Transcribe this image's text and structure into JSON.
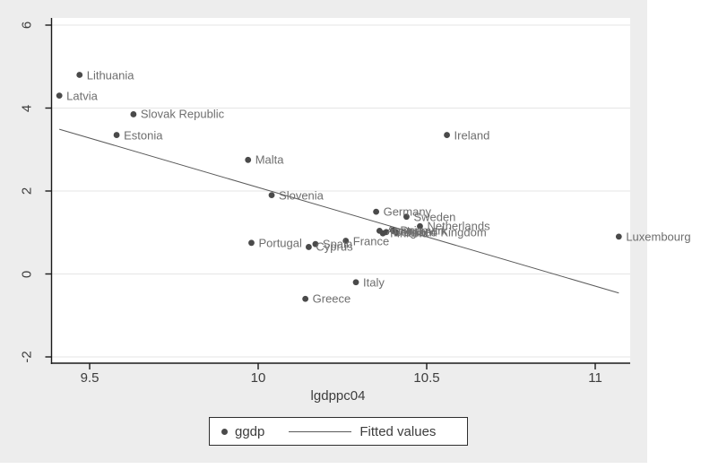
{
  "figure": {
    "background_color": "#ededed",
    "plot_background_color": "#ffffff",
    "marker_color": "#4a4a4a",
    "label_color": "#6e6e6e",
    "axis_color": "#1a1a1a",
    "gridline_color": "#e5e5e5",
    "fitted_line_color": "#5a5a5a"
  },
  "legend": {
    "marker_label": "ggdp",
    "line_label": "Fitted values"
  },
  "chart_data": {
    "type": "scatter",
    "title": "",
    "xlabel": "lgdppc04",
    "ylabel": "",
    "xlim": [
      9.39,
      11.11
    ],
    "ylim": [
      -2.15,
      6.07
    ],
    "x_ticks": [
      9.5,
      10,
      10.5,
      11
    ],
    "y_ticks": [
      -2,
      0,
      2,
      4,
      6
    ],
    "grid": "horizontal",
    "legend_position": "bottom-center",
    "series": [
      {
        "name": "ggdp",
        "type": "scatter",
        "points": [
          {
            "label": "Latvia",
            "x": 9.41,
            "y": 4.3
          },
          {
            "label": "Lithuania",
            "x": 9.47,
            "y": 4.8
          },
          {
            "label": "Estonia",
            "x": 9.58,
            "y": 3.35
          },
          {
            "label": "Slovak Republic",
            "x": 9.63,
            "y": 3.85
          },
          {
            "label": "Malta",
            "x": 9.97,
            "y": 2.75
          },
          {
            "label": "Portugal",
            "x": 9.98,
            "y": 0.75
          },
          {
            "label": "Slovenia",
            "x": 10.04,
            "y": 1.9
          },
          {
            "label": "Greece",
            "x": 10.14,
            "y": -0.6
          },
          {
            "label": "Cyprus",
            "x": 10.15,
            "y": 0.65
          },
          {
            "label": "Spain",
            "x": 10.17,
            "y": 0.72
          },
          {
            "label": "France",
            "x": 10.26,
            "y": 0.8
          },
          {
            "label": "Italy",
            "x": 10.29,
            "y": -0.2
          },
          {
            "label": "Germany",
            "x": 10.35,
            "y": 1.5
          },
          {
            "label": "Austria",
            "x": 10.36,
            "y": 1.04
          },
          {
            "label": "Finland",
            "x": 10.37,
            "y": 0.98
          },
          {
            "label": "Belgium",
            "x": 10.38,
            "y": 1.01
          },
          {
            "label": "Denmark",
            "x": 10.4,
            "y": 1.05
          },
          {
            "label": "United Kingdom",
            "x": 10.41,
            "y": 1.0
          },
          {
            "label": "Sweden",
            "x": 10.44,
            "y": 1.38
          },
          {
            "label": "Netherlands",
            "x": 10.48,
            "y": 1.15
          },
          {
            "label": "Ireland",
            "x": 10.56,
            "y": 3.35
          },
          {
            "label": "Luxembourg",
            "x": 11.07,
            "y": 0.9
          }
        ]
      },
      {
        "name": "Fitted values",
        "type": "line",
        "points": [
          {
            "x": 9.41,
            "y": 3.49
          },
          {
            "x": 11.07,
            "y": -0.46
          }
        ]
      }
    ]
  }
}
